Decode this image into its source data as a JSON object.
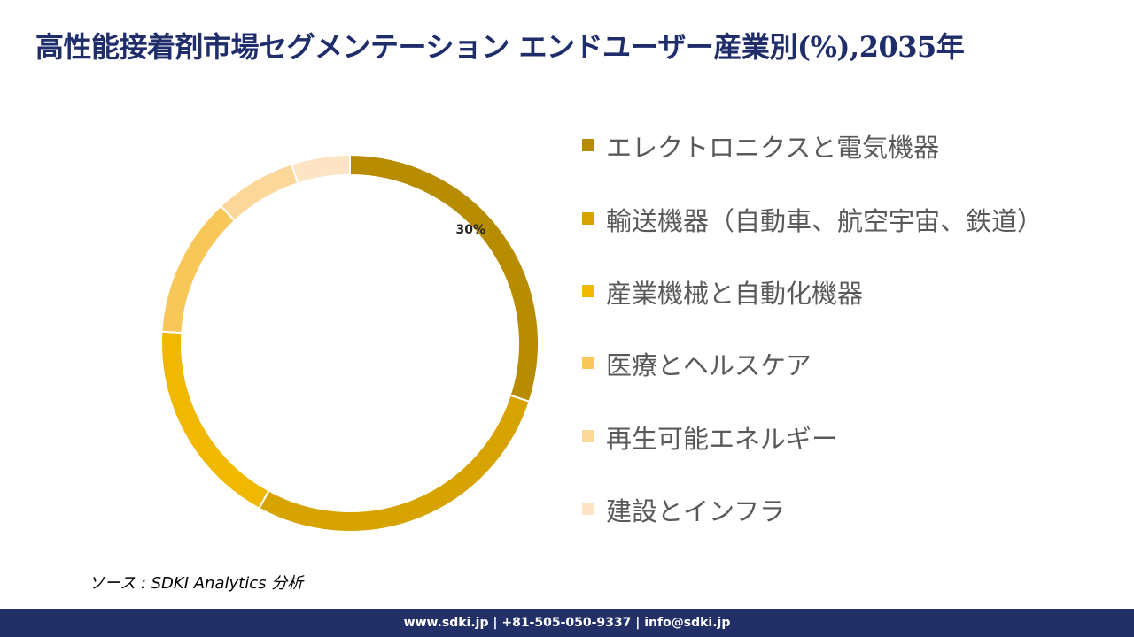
{
  "chart_data": {
    "type": "donut",
    "title": "高性能接着剤市場セグメンテーション エンドユーザー産業別(%),2035年",
    "categories": [
      "エレクトロニクスと電気機器",
      "輸送機器（自動車、航空宇宙、鉄道）",
      "産業機械と自動化機器",
      "医療とヘルスケア",
      "再生可能エネルギー",
      "建設とインフラ"
    ],
    "values": [
      30,
      28,
      18,
      12,
      7,
      5
    ],
    "value_labels": [
      "30%",
      null,
      null,
      null,
      null,
      null
    ],
    "colors": [
      "#b88c00",
      "#d6a300",
      "#f0b800",
      "#f8c75a",
      "#fbd79a",
      "#fde4c4"
    ],
    "legend": "right"
  },
  "source": "ソース : SDKI Analytics  分析",
  "footer": "www.sdki.jp | +81-505-050-9337 | info@sdki.jp"
}
